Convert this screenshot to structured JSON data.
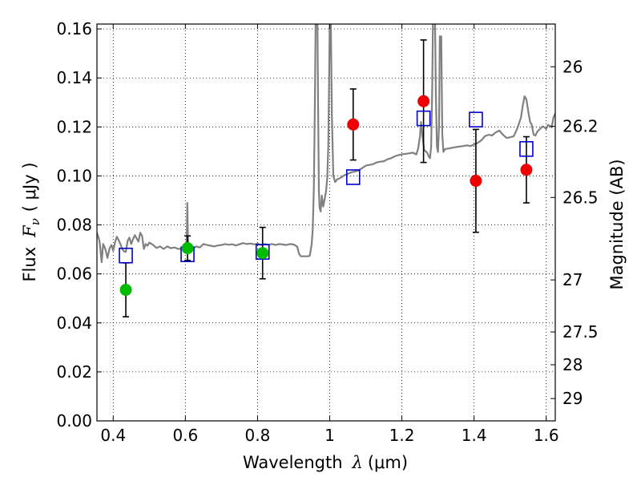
{
  "chart_data": {
    "type": "scatter",
    "xlabel_prefix": "Wavelength",
    "xlabel_symbol": "λ",
    "xlabel_unit": "(μm)",
    "ylabel_prefix": "Flux",
    "ylabel_symbol": "F",
    "ylabel_subscript": "ν",
    "ylabel_unit": "( μJy )",
    "y2label": "Magnitude (AB)",
    "xlim": [
      0.355,
      1.625
    ],
    "ylim": [
      0.0,
      0.162
    ],
    "grid": true,
    "x_ticks": [
      {
        "value": 0.4,
        "label": "0.4"
      },
      {
        "value": 0.6,
        "label": "0.6"
      },
      {
        "value": 0.8,
        "label": "0.8"
      },
      {
        "value": 1.0,
        "label": "1"
      },
      {
        "value": 1.2,
        "label": "1.2"
      },
      {
        "value": 1.4,
        "label": "1.4"
      },
      {
        "value": 1.6,
        "label": "1.6"
      }
    ],
    "y_ticks": [
      {
        "value": 0.0,
        "label": "0.00"
      },
      {
        "value": 0.02,
        "label": "0.02"
      },
      {
        "value": 0.04,
        "label": "0.04"
      },
      {
        "value": 0.06,
        "label": "0.06"
      },
      {
        "value": 0.08,
        "label": "0.08"
      },
      {
        "value": 0.1,
        "label": "0.10"
      },
      {
        "value": 0.12,
        "label": "0.12"
      },
      {
        "value": 0.14,
        "label": "0.14"
      },
      {
        "value": 0.16,
        "label": "0.16"
      }
    ],
    "y2_ticks": [
      {
        "value": 26,
        "label": "26"
      },
      {
        "value": 26.2,
        "label": "26.2"
      },
      {
        "value": 26.5,
        "label": "26.5"
      },
      {
        "value": 27,
        "label": "27"
      },
      {
        "value": 27.5,
        "label": "27.5"
      },
      {
        "value": 28,
        "label": "28"
      },
      {
        "value": 29,
        "label": "29"
      }
    ],
    "colors": {
      "spectrum": "#808080",
      "optical": "#00bb00",
      "nir": "#ee0000",
      "model": "#0000cc",
      "errorbar": "#000000"
    },
    "observed_optical": [
      {
        "x": 0.435,
        "y": 0.0535,
        "err": 0.011
      },
      {
        "x": 0.606,
        "y": 0.0705,
        "err": 0.005
      },
      {
        "x": 0.814,
        "y": 0.0685,
        "err": 0.0105
      }
    ],
    "observed_nir": [
      {
        "x": 1.065,
        "y": 0.121,
        "err": 0.0145
      },
      {
        "x": 1.26,
        "y": 0.1305,
        "err": 0.025
      },
      {
        "x": 1.405,
        "y": 0.098,
        "err": 0.021
      },
      {
        "x": 1.545,
        "y": 0.1025,
        "err": 0.0135
      }
    ],
    "model_photometry": [
      {
        "x": 0.435,
        "y": 0.0675
      },
      {
        "x": 0.606,
        "y": 0.068
      },
      {
        "x": 0.814,
        "y": 0.069
      },
      {
        "x": 1.065,
        "y": 0.0995
      },
      {
        "x": 1.26,
        "y": 0.1235
      },
      {
        "x": 1.405,
        "y": 0.123
      },
      {
        "x": 1.545,
        "y": 0.111
      }
    ],
    "spectrum": [
      [
        0.355,
        0.0768
      ],
      [
        0.362,
        0.0735
      ],
      [
        0.368,
        0.0648
      ],
      [
        0.372,
        0.0722
      ],
      [
        0.378,
        0.0703
      ],
      [
        0.384,
        0.0665
      ],
      [
        0.39,
        0.0705
      ],
      [
        0.395,
        0.0718
      ],
      [
        0.4,
        0.0695
      ],
      [
        0.405,
        0.0728
      ],
      [
        0.41,
        0.0752
      ],
      [
        0.415,
        0.0738
      ],
      [
        0.42,
        0.0722
      ],
      [
        0.425,
        0.0702
      ],
      [
        0.43,
        0.0692
      ],
      [
        0.435,
        0.069
      ],
      [
        0.44,
        0.0735
      ],
      [
        0.445,
        0.0748
      ],
      [
        0.45,
        0.0722
      ],
      [
        0.455,
        0.0742
      ],
      [
        0.46,
        0.0758
      ],
      [
        0.465,
        0.0745
      ],
      [
        0.47,
        0.0732
      ],
      [
        0.475,
        0.0768
      ],
      [
        0.48,
        0.0755
      ],
      [
        0.485,
        0.0702
      ],
      [
        0.49,
        0.0722
      ],
      [
        0.495,
        0.0715
      ],
      [
        0.5,
        0.0728
      ],
      [
        0.51,
        0.0719
      ],
      [
        0.52,
        0.0706
      ],
      [
        0.53,
        0.0712
      ],
      [
        0.54,
        0.0702
      ],
      [
        0.55,
        0.0712
      ],
      [
        0.56,
        0.0705
      ],
      [
        0.57,
        0.0708
      ],
      [
        0.58,
        0.0702
      ],
      [
        0.59,
        0.0703
      ],
      [
        0.6,
        0.0708
      ],
      [
        0.604,
        0.0745
      ],
      [
        0.6055,
        0.089
      ],
      [
        0.607,
        0.0745
      ],
      [
        0.61,
        0.0705
      ],
      [
        0.62,
        0.0703
      ],
      [
        0.63,
        0.0712
      ],
      [
        0.64,
        0.0708
      ],
      [
        0.65,
        0.0722
      ],
      [
        0.66,
        0.0718
      ],
      [
        0.67,
        0.0715
      ],
      [
        0.68,
        0.0712
      ],
      [
        0.69,
        0.0716
      ],
      [
        0.7,
        0.0718
      ],
      [
        0.71,
        0.0722
      ],
      [
        0.72,
        0.0719
      ],
      [
        0.73,
        0.0721
      ],
      [
        0.74,
        0.0716
      ],
      [
        0.75,
        0.0721
      ],
      [
        0.76,
        0.0726
      ],
      [
        0.77,
        0.0722
      ],
      [
        0.78,
        0.0724
      ],
      [
        0.79,
        0.0721
      ],
      [
        0.8,
        0.0723
      ],
      [
        0.81,
        0.0718
      ],
      [
        0.82,
        0.0722
      ],
      [
        0.83,
        0.0719
      ],
      [
        0.84,
        0.0722
      ],
      [
        0.85,
        0.0718
      ],
      [
        0.86,
        0.0722
      ],
      [
        0.87,
        0.072
      ],
      [
        0.88,
        0.0718
      ],
      [
        0.89,
        0.0722
      ],
      [
        0.9,
        0.072
      ],
      [
        0.905,
        0.0716
      ],
      [
        0.91,
        0.0711
      ],
      [
        0.915,
        0.0682
      ],
      [
        0.92,
        0.0672
      ],
      [
        0.93,
        0.0672
      ],
      [
        0.94,
        0.0672
      ],
      [
        0.945,
        0.0675
      ],
      [
        0.95,
        0.0722
      ],
      [
        0.953,
        0.078
      ],
      [
        0.956,
        0.095
      ],
      [
        0.959,
        0.13
      ],
      [
        0.961,
        0.162
      ],
      [
        0.966,
        0.162
      ],
      [
        0.968,
        0.125
      ],
      [
        0.97,
        0.094
      ],
      [
        0.972,
        0.087
      ],
      [
        0.975,
        0.0855
      ],
      [
        0.978,
        0.092
      ],
      [
        0.982,
        0.0875
      ],
      [
        0.986,
        0.0905
      ],
      [
        0.99,
        0.094
      ],
      [
        0.993,
        0.099
      ],
      [
        0.996,
        0.112
      ],
      [
        0.998,
        0.135
      ],
      [
        1.0,
        0.162
      ],
      [
        1.003,
        0.162
      ],
      [
        1.006,
        0.125
      ],
      [
        1.01,
        0.1
      ],
      [
        1.015,
        0.0975
      ],
      [
        1.02,
        0.0985
      ],
      [
        1.03,
        0.0992
      ],
      [
        1.04,
        0.1002
      ],
      [
        1.05,
        0.1008
      ],
      [
        1.06,
        0.1015
      ],
      [
        1.07,
        0.1018
      ],
      [
        1.08,
        0.1022
      ],
      [
        1.09,
        0.1032
      ],
      [
        1.1,
        0.1042
      ],
      [
        1.11,
        0.1045
      ],
      [
        1.12,
        0.1048
      ],
      [
        1.13,
        0.1055
      ],
      [
        1.14,
        0.1058
      ],
      [
        1.15,
        0.106
      ],
      [
        1.16,
        0.1068
      ],
      [
        1.17,
        0.1072
      ],
      [
        1.18,
        0.108
      ],
      [
        1.19,
        0.1085
      ],
      [
        1.2,
        0.1088
      ],
      [
        1.21,
        0.109
      ],
      [
        1.22,
        0.1092
      ],
      [
        1.23,
        0.1095
      ],
      [
        1.24,
        0.1088
      ],
      [
        1.245,
        0.1112
      ],
      [
        1.25,
        0.116
      ],
      [
        1.253,
        0.122
      ],
      [
        1.257,
        0.116
      ],
      [
        1.262,
        0.1105
      ],
      [
        1.27,
        0.1095
      ],
      [
        1.275,
        0.1078
      ],
      [
        1.278,
        0.1072
      ],
      [
        1.281,
        0.112
      ],
      [
        1.284,
        0.135
      ],
      [
        1.286,
        0.162
      ],
      [
        1.292,
        0.162
      ],
      [
        1.294,
        0.135
      ],
      [
        1.297,
        0.112
      ],
      [
        1.3,
        0.1098
      ],
      [
        1.303,
        0.121
      ],
      [
        1.305,
        0.157
      ],
      [
        1.309,
        0.157
      ],
      [
        1.312,
        0.117
      ],
      [
        1.315,
        0.1098
      ],
      [
        1.32,
        0.111
      ],
      [
        1.33,
        0.1112
      ],
      [
        1.34,
        0.1115
      ],
      [
        1.35,
        0.1118
      ],
      [
        1.36,
        0.112
      ],
      [
        1.37,
        0.1122
      ],
      [
        1.38,
        0.1125
      ],
      [
        1.39,
        0.1122
      ],
      [
        1.4,
        0.1128
      ],
      [
        1.41,
        0.1135
      ],
      [
        1.42,
        0.1145
      ],
      [
        1.43,
        0.1162
      ],
      [
        1.44,
        0.1168
      ],
      [
        1.45,
        0.1165
      ],
      [
        1.46,
        0.1178
      ],
      [
        1.47,
        0.1185
      ],
      [
        1.48,
        0.1168
      ],
      [
        1.49,
        0.1155
      ],
      [
        1.5,
        0.1158
      ],
      [
        1.51,
        0.1162
      ],
      [
        1.52,
        0.1195
      ],
      [
        1.53,
        0.1238
      ],
      [
        1.535,
        0.1288
      ],
      [
        1.54,
        0.1325
      ],
      [
        1.545,
        0.1312
      ],
      [
        1.55,
        0.1265
      ],
      [
        1.555,
        0.1222
      ],
      [
        1.56,
        0.1208
      ],
      [
        1.565,
        0.1168
      ],
      [
        1.57,
        0.1165
      ],
      [
        1.575,
        0.118
      ],
      [
        1.58,
        0.1188
      ],
      [
        1.585,
        0.1195
      ],
      [
        1.59,
        0.1202
      ],
      [
        1.595,
        0.1198
      ],
      [
        1.6,
        0.1192
      ],
      [
        1.605,
        0.1208
      ],
      [
        1.61,
        0.1205
      ],
      [
        1.615,
        0.1198
      ],
      [
        1.62,
        0.1238
      ],
      [
        1.625,
        0.1255
      ]
    ]
  }
}
